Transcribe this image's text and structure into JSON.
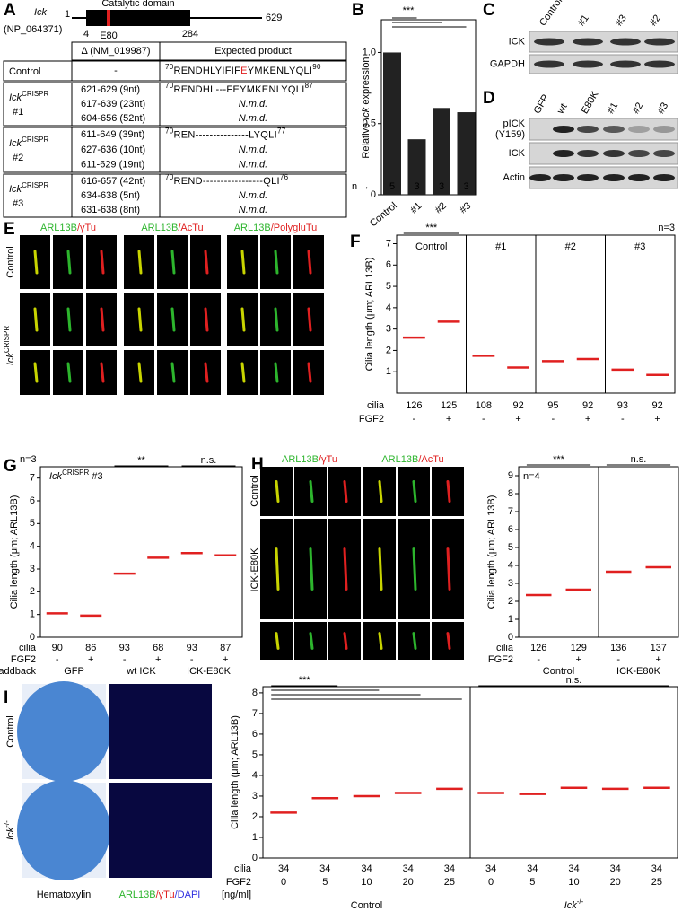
{
  "panel_labels": [
    "A",
    "B",
    "C",
    "D",
    "E",
    "F",
    "G",
    "H",
    "I"
  ],
  "panel_a": {
    "gene": "Ick",
    "accession": "(NP_064371)",
    "domain": "Catalytic domain",
    "start": "1",
    "end": "629",
    "domain_start": "4",
    "domain_end": "284",
    "mutation": "E80",
    "mutation_color": "#e02020",
    "headers": [
      "Δ (NM_019987)",
      "Expected product"
    ],
    "rows": [
      {
        "name": "Control",
        "deletions": [
          "-"
        ],
        "products": [
          {
            "start": "70",
            "seq": "RENDHLYIFIF",
            "mut": "E",
            "seq2": "YMKENLYQLI",
            "end": "90"
          }
        ]
      },
      {
        "name": {
          "text": "Ick",
          "sup": "CRISPR"
        },
        "num": "#1",
        "deletions": [
          "621-629 (9nt)",
          "617-639 (23nt)",
          "604-656 (52nt)"
        ],
        "products": [
          {
            "start": "70",
            "seq": "RENDHL---FEYMKENLYQLI",
            "end": "87"
          },
          "N.m.d.",
          "N.m.d."
        ]
      },
      {
        "name": {
          "text": "Ick",
          "sup": "CRISPR"
        },
        "num": "#2",
        "deletions": [
          "611-649 (39nt)",
          "627-636 (10nt)",
          "611-629 (19nt)"
        ],
        "products": [
          {
            "start": "70",
            "seq": "REN---------------LYQLI",
            "end": "77"
          },
          "N.m.d.",
          "N.m.d."
        ]
      },
      {
        "name": {
          "text": "Ick",
          "sup": "CRISPR"
        },
        "num": "#3",
        "deletions": [
          "616-657 (42nt)",
          "634-638 (5nt)",
          "631-638 (8nt)"
        ],
        "products": [
          {
            "start": "70",
            "seq": "REND-----------------QLI",
            "end": "76"
          },
          "N.m.d.",
          "N.m.d."
        ]
      }
    ]
  },
  "panel_c": {
    "lanes": [
      "Control",
      "#1",
      "#3",
      "#2"
    ],
    "rows": [
      "ICK",
      "GAPDH"
    ]
  },
  "panel_d": {
    "lanes": [
      "GFP",
      "wt",
      "E80K",
      "#1",
      "#2",
      "#3"
    ],
    "rows": [
      [
        "pICK",
        "(Y159)"
      ],
      [
        "ICK"
      ],
      [
        "Actin"
      ]
    ]
  },
  "panel_e": {
    "columns": [
      [
        {
          "text": "ARL13B",
          "color": "#2db52d"
        },
        {
          "text": "/γTu",
          "color": "#e02020"
        }
      ],
      [
        {
          "text": "ARL13B",
          "color": "#2db52d"
        },
        {
          "text": "/AcTu",
          "color": "#e02020"
        }
      ],
      [
        {
          "text": "ARL13B",
          "color": "#2db52d"
        },
        {
          "text": "/PolygluTu",
          "color": "#e02020"
        }
      ]
    ],
    "rows": [
      "Control",
      {
        "text": "Ick",
        "sup": "CRISPR"
      }
    ]
  },
  "panel_h_images": {
    "columns": [
      [
        {
          "text": "ARL13B",
          "color": "#2db52d"
        },
        {
          "text": "/γTu",
          "color": "#e02020"
        }
      ],
      [
        {
          "text": "ARL13B",
          "color": "#2db52d"
        },
        {
          "text": "/AcTu",
          "color": "#e02020"
        }
      ]
    ],
    "rows": [
      "Control",
      "ICK-E80K"
    ]
  },
  "panel_i_images": {
    "rows": [
      "Control",
      {
        "text": "Ick",
        "sup": "-/-"
      }
    ],
    "captions": [
      [
        {
          "text": "Hematoxylin",
          "color": "#000000"
        }
      ],
      [
        {
          "text": "ARL13B",
          "color": "#2db52d"
        },
        {
          "text": "/γTu",
          "color": "#e02020"
        },
        {
          "text": "/DAPI",
          "color": "#3030e0"
        }
      ]
    ]
  },
  "chart_data": [
    {
      "type": "bar",
      "panel": "B",
      "ylabel": {
        "pre": "Relative ",
        "text": "Ick",
        "after": " expression"
      },
      "categories": [
        "Control",
        "#1",
        "#2",
        "#3"
      ],
      "values": [
        1.0,
        0.39,
        0.61,
        0.58
      ],
      "n_label": "n →",
      "n": [
        5,
        3,
        3,
        3
      ],
      "color": "#222222",
      "ylim": [
        0,
        1.23
      ],
      "yticks": [
        0,
        0.5,
        {
          "value": 1,
          "label": "1.0"
        }
      ],
      "significance": [
        "***"
      ]
    },
    {
      "type": "dot",
      "panel": "F",
      "ylabel": "Cilia length (μm; ARL13B)",
      "ylim": [
        0,
        7.4
      ],
      "yticks": [
        1,
        2,
        3,
        4,
        5,
        6,
        7
      ],
      "n": "n=3",
      "groups": [
        "Control",
        "#1",
        "#2",
        "#3"
      ],
      "cilia_label": "cilia",
      "cilia": [
        126,
        125,
        108,
        92,
        95,
        92,
        93,
        92
      ],
      "fgf2_label": "FGF2",
      "fgf2": [
        "-",
        "+",
        "-",
        "+",
        "-",
        "+",
        "-",
        "+"
      ],
      "medians": [
        2.6,
        3.35,
        1.75,
        1.2,
        1.5,
        1.6,
        1.1,
        0.85
      ],
      "median_color": "#e02020",
      "significance": [
        "***"
      ]
    },
    {
      "type": "dot",
      "panel": "G",
      "ylabel": "Cilia length (μm; ARL13B)",
      "ylim": [
        0,
        7.5
      ],
      "yticks": [
        0,
        1,
        2,
        3,
        4,
        5,
        6,
        7
      ],
      "n": "n=3",
      "subtitle": {
        "text": "Ick",
        "sup": "CRISPR",
        "after": " #3"
      },
      "groups": [
        "GFP",
        "wt ICK",
        "ICK-E80K"
      ],
      "group_label": "addback",
      "cilia_label": "cilia",
      "cilia": [
        90,
        86,
        93,
        68,
        93,
        87
      ],
      "fgf2_label": "FGF2",
      "fgf2": [
        "-",
        "+",
        "-",
        "+",
        "-",
        "+"
      ],
      "medians": [
        1.05,
        0.95,
        2.8,
        3.5,
        3.7,
        3.6
      ],
      "median_color": "#e02020",
      "significance": [
        "**",
        "n.s."
      ]
    },
    {
      "type": "dot",
      "panel": "H",
      "ylabel": "Cilia length (μm; ARL13B)",
      "ylim": [
        0,
        9.5
      ],
      "yticks": [
        0,
        1,
        2,
        3,
        4,
        5,
        6,
        7,
        8,
        9
      ],
      "n": "n=4",
      "groups": [
        "Control",
        "ICK-E80K"
      ],
      "cilia_label": "cilia",
      "cilia": [
        126,
        129,
        136,
        137
      ],
      "fgf2_label": "FGF2",
      "fgf2": [
        "-",
        "+",
        "-",
        "+"
      ],
      "medians": [
        2.35,
        2.65,
        3.65,
        3.9
      ],
      "median_color": "#e02020",
      "significance": [
        "***",
        "n.s."
      ]
    },
    {
      "type": "dot",
      "panel": "I",
      "ylabel": "Cilia length (μm; ARL13B)",
      "ylim": [
        0,
        8.3
      ],
      "yticks": [
        0,
        1,
        2,
        3,
        4,
        5,
        6,
        7,
        8
      ],
      "groups": [
        "Control",
        {
          "text": "Ick",
          "sup": "-/-"
        }
      ],
      "cilia_label": "cilia",
      "cilia": [
        34,
        34,
        34,
        34,
        34,
        34,
        34,
        34,
        34,
        34
      ],
      "fgf2_label": "FGF2",
      "fgf2_unit": "[ng/ml]",
      "fgf2": [
        0,
        5,
        10,
        20,
        25,
        0,
        5,
        10,
        20,
        25
      ],
      "medians": [
        2.2,
        2.9,
        3.0,
        3.15,
        3.35,
        3.15,
        3.1,
        3.4,
        3.35,
        3.4
      ],
      "median_color": "#e02020",
      "significance": [
        "***",
        "n.s."
      ]
    }
  ]
}
